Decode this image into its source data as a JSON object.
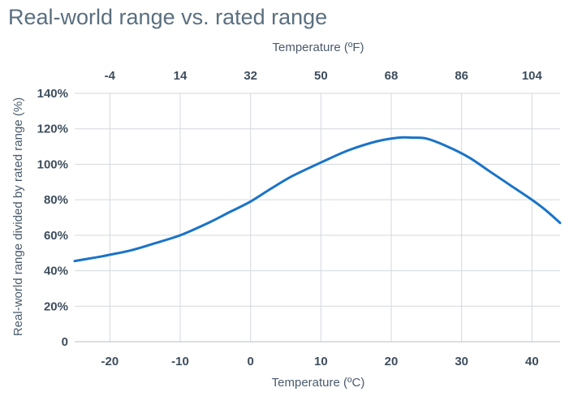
{
  "chart_data": {
    "type": "line",
    "title": "Real-world range vs. rated range",
    "xlabel": "Temperature (ºC)",
    "x2label": "Temperature (ºF)",
    "ylabel": "Real-world range divided by rated range (%)",
    "xlim": [
      -25,
      44
    ],
    "ylim": [
      0,
      140
    ],
    "x_ticks": [
      -20,
      -10,
      0,
      10,
      20,
      30,
      40
    ],
    "x2_ticks": [
      "-4",
      "14",
      "32",
      "50",
      "68",
      "86",
      "104"
    ],
    "y_ticks": [
      "0",
      "20%",
      "40%",
      "60%",
      "80%",
      "100%",
      "120%",
      "140%"
    ],
    "y_tick_values": [
      0,
      20,
      40,
      60,
      80,
      100,
      120,
      140
    ],
    "grid": true,
    "color": "#1a73c8",
    "series": [
      {
        "x": [
          -25,
          -22,
          -20,
          -17,
          -14,
          -10,
          -6,
          -3,
          0,
          3,
          6,
          10,
          14,
          18,
          21,
          23,
          25,
          28,
          31,
          34,
          37,
          40,
          42,
          44
        ],
        "y": [
          45.5,
          47.5,
          49,
          51.5,
          55,
          60,
          67,
          73,
          79,
          86.5,
          93.5,
          101,
          108,
          113,
          115,
          115,
          114.5,
          110,
          104,
          96,
          88,
          80,
          74,
          67
        ]
      }
    ]
  }
}
